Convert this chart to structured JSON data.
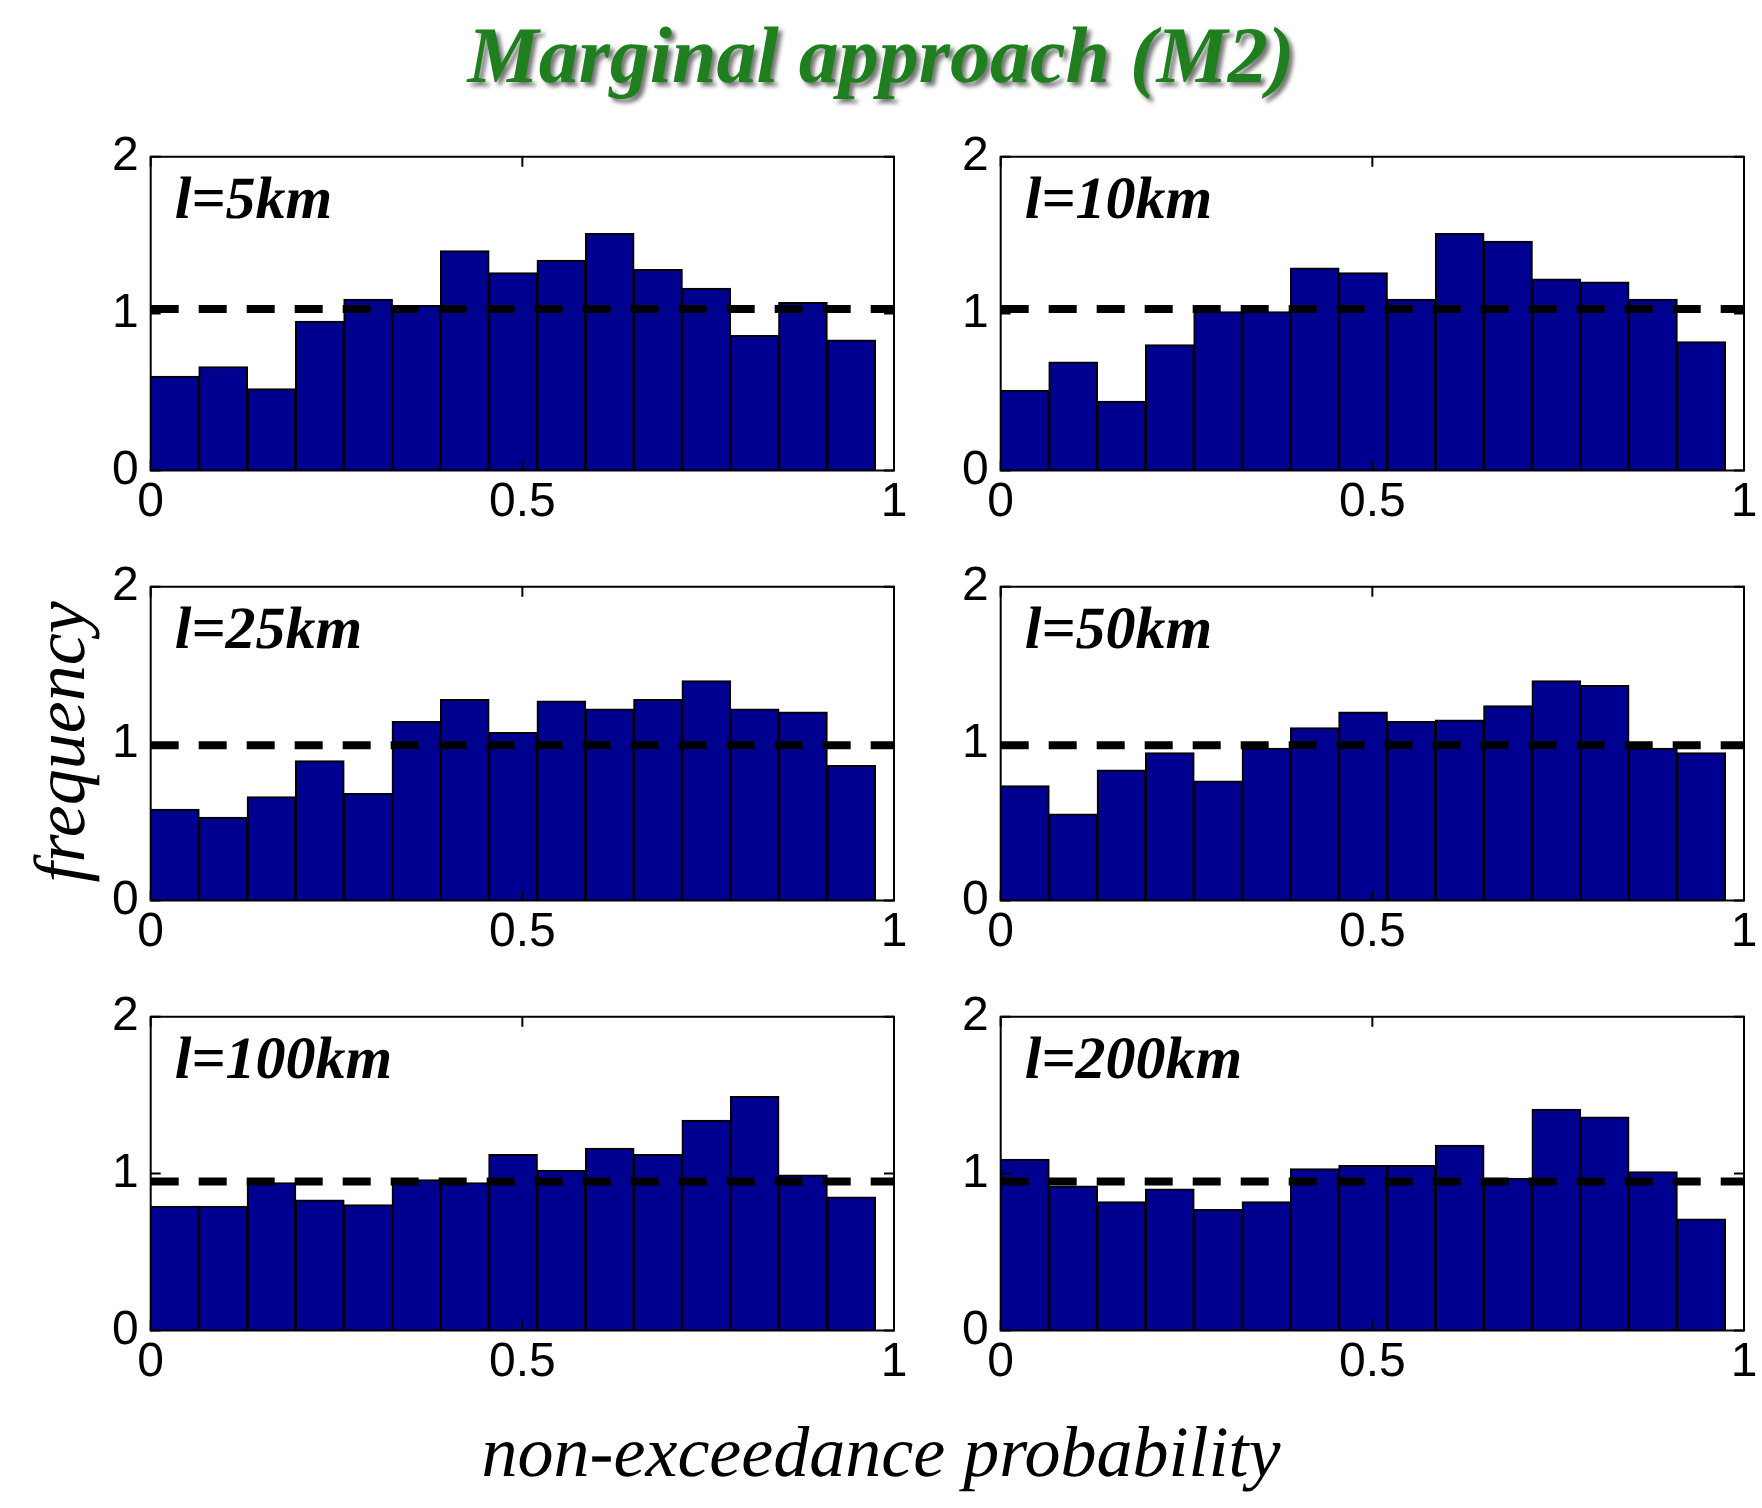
{
  "chart_data": [
    {
      "type": "histogram",
      "title": "Marginal approach (M2)",
      "annotations": [
        "l=5km"
      ],
      "bins": [
        0,
        0.065,
        0.13,
        0.195,
        0.26,
        0.325,
        0.39,
        0.455,
        0.52,
        0.585,
        0.65,
        0.715,
        0.78,
        0.845,
        0.91,
        0.975
      ],
      "values": [
        0.6,
        0.66,
        0.52,
        0.95,
        1.09,
        1.05,
        1.4,
        1.26,
        1.34,
        1.51,
        1.28,
        1.16,
        0.86,
        1.07,
        0.83
      ],
      "color": "#000090",
      "xlim": [
        0,
        1
      ],
      "xticks": [
        0,
        0.5,
        1
      ],
      "ylim": [
        0,
        2
      ],
      "yticks": [
        0,
        1,
        2
      ],
      "grid": false,
      "ref_lines": [
        {
          "axis": "y",
          "value": 1.03,
          "color": "#000000",
          "line_style": "dashed"
        }
      ]
    },
    {
      "type": "histogram",
      "annotations": [
        "l=10km"
      ],
      "bins": [
        0,
        0.065,
        0.13,
        0.195,
        0.26,
        0.325,
        0.39,
        0.455,
        0.52,
        0.585,
        0.65,
        0.715,
        0.78,
        0.845,
        0.91,
        0.975
      ],
      "values": [
        0.51,
        0.69,
        0.44,
        0.8,
        1.01,
        1.01,
        1.29,
        1.26,
        1.09,
        1.51,
        1.46,
        1.22,
        1.2,
        1.09,
        0.82
      ],
      "color": "#000090",
      "xlim": [
        0,
        1
      ],
      "xticks": [
        0,
        0.5,
        1
      ],
      "ylim": [
        0,
        2
      ],
      "yticks": [
        0,
        1,
        2
      ],
      "grid": false,
      "ref_lines": [
        {
          "axis": "y",
          "value": 1.03,
          "color": "#000000",
          "line_style": "dashed"
        }
      ]
    },
    {
      "type": "histogram",
      "ylabel": "frequency",
      "annotations": [
        "l=25km"
      ],
      "bins": [
        0,
        0.065,
        0.13,
        0.195,
        0.26,
        0.325,
        0.39,
        0.455,
        0.52,
        0.585,
        0.65,
        0.715,
        0.78,
        0.845,
        0.91,
        0.975
      ],
      "values": [
        0.58,
        0.53,
        0.66,
        0.89,
        0.68,
        1.14,
        1.28,
        1.07,
        1.27,
        1.22,
        1.28,
        1.4,
        1.22,
        1.2,
        0.86
      ],
      "color": "#000090",
      "xlim": [
        0,
        1
      ],
      "xticks": [
        0,
        0.5,
        1
      ],
      "ylim": [
        0,
        2
      ],
      "yticks": [
        0,
        1,
        2
      ],
      "grid": false,
      "ref_lines": [
        {
          "axis": "y",
          "value": 0.99,
          "color": "#000000",
          "line_style": "dashed"
        }
      ]
    },
    {
      "type": "histogram",
      "annotations": [
        "l=50km"
      ],
      "bins": [
        0,
        0.065,
        0.13,
        0.195,
        0.26,
        0.325,
        0.39,
        0.455,
        0.52,
        0.585,
        0.65,
        0.715,
        0.78,
        0.845,
        0.91,
        0.975
      ],
      "values": [
        0.73,
        0.55,
        0.83,
        0.94,
        0.76,
        0.97,
        1.1,
        1.2,
        1.14,
        1.15,
        1.24,
        1.4,
        1.37,
        0.97,
        0.94
      ],
      "color": "#000090",
      "xlim": [
        0,
        1
      ],
      "xticks": [
        0,
        0.5,
        1
      ],
      "ylim": [
        0,
        2
      ],
      "yticks": [
        0,
        1,
        2
      ],
      "grid": false,
      "ref_lines": [
        {
          "axis": "y",
          "value": 0.99,
          "color": "#000000",
          "line_style": "dashed"
        }
      ]
    },
    {
      "type": "histogram",
      "xlabel": "non-exceedance probability",
      "annotations": [
        "l=100km"
      ],
      "bins": [
        0,
        0.065,
        0.13,
        0.195,
        0.26,
        0.325,
        0.39,
        0.455,
        0.52,
        0.585,
        0.65,
        0.715,
        0.78,
        0.845,
        0.91,
        0.975
      ],
      "values": [
        0.79,
        0.79,
        0.94,
        0.83,
        0.8,
        0.96,
        0.94,
        1.12,
        1.02,
        1.16,
        1.12,
        1.34,
        1.49,
        0.99,
        0.85
      ],
      "color": "#000090",
      "xlim": [
        0,
        1
      ],
      "xticks": [
        0,
        0.5,
        1
      ],
      "ylim": [
        0,
        2
      ],
      "yticks": [
        0,
        1,
        2
      ],
      "grid": false,
      "ref_lines": [
        {
          "axis": "y",
          "value": 0.95,
          "color": "#000000",
          "line_style": "dashed"
        }
      ]
    },
    {
      "type": "histogram",
      "annotations": [
        "l=200km"
      ],
      "bins": [
        0,
        0.065,
        0.13,
        0.195,
        0.26,
        0.325,
        0.39,
        0.455,
        0.52,
        0.585,
        0.65,
        0.715,
        0.78,
        0.845,
        0.91,
        0.975
      ],
      "values": [
        1.09,
        0.92,
        0.82,
        0.9,
        0.77,
        0.82,
        1.03,
        1.05,
        1.05,
        1.18,
        0.97,
        1.41,
        1.36,
        1.01,
        0.71
      ],
      "color": "#000090",
      "xlim": [
        0,
        1
      ],
      "xticks": [
        0,
        0.5,
        1
      ],
      "ylim": [
        0,
        2
      ],
      "yticks": [
        0,
        1,
        2
      ],
      "grid": false,
      "ref_lines": [
        {
          "axis": "y",
          "value": 0.95,
          "color": "#000000",
          "line_style": "dashed"
        }
      ]
    }
  ]
}
